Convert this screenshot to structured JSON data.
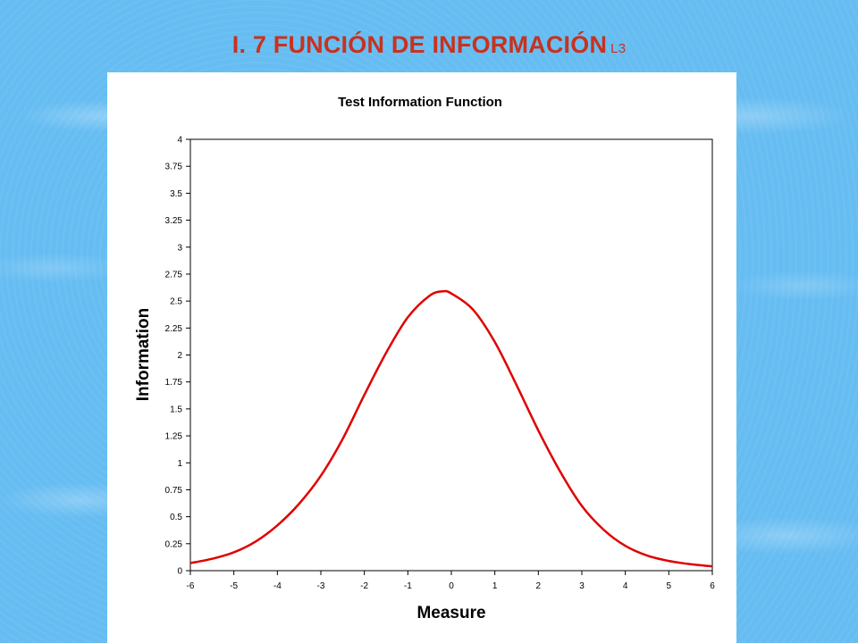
{
  "slide": {
    "title": "I. 7 FUNCIÓN DE INFORMACIÓN",
    "title_suffix": "L3",
    "title_color": "#c8321e",
    "background_color": "#66bdf2"
  },
  "chart_data": {
    "type": "line",
    "title": "Test Information Function",
    "xlabel": "Measure",
    "ylabel": "Information",
    "xlim": [
      -6,
      6
    ],
    "ylim": [
      0,
      4
    ],
    "x_ticks": [
      "-6",
      "-5",
      "-4",
      "-3",
      "-2",
      "-1",
      "0",
      "1",
      "2",
      "3",
      "4",
      "5",
      "6"
    ],
    "y_ticks": [
      "0",
      "0.25",
      "0.5",
      "0.75",
      "1",
      "1.25",
      "1.5",
      "1.75",
      "2",
      "2.25",
      "2.5",
      "2.75",
      "3",
      "3.25",
      "3.5",
      "3.75",
      "4"
    ],
    "grid": false,
    "legend": "none",
    "series": [
      {
        "color": "#e00000",
        "x": [
          -6,
          -5.5,
          -5,
          -4.5,
          -4,
          -3.5,
          -3,
          -2.5,
          -2,
          -1.5,
          -1,
          -0.5,
          -0.2,
          0,
          0.5,
          1,
          1.5,
          2,
          2.5,
          3,
          3.5,
          4,
          4.5,
          5,
          5.5,
          6
        ],
        "y": [
          0.07,
          0.11,
          0.17,
          0.27,
          0.42,
          0.62,
          0.88,
          1.22,
          1.63,
          2.02,
          2.35,
          2.55,
          2.59,
          2.57,
          2.42,
          2.12,
          1.72,
          1.3,
          0.92,
          0.6,
          0.38,
          0.23,
          0.14,
          0.09,
          0.06,
          0.04
        ]
      }
    ]
  }
}
